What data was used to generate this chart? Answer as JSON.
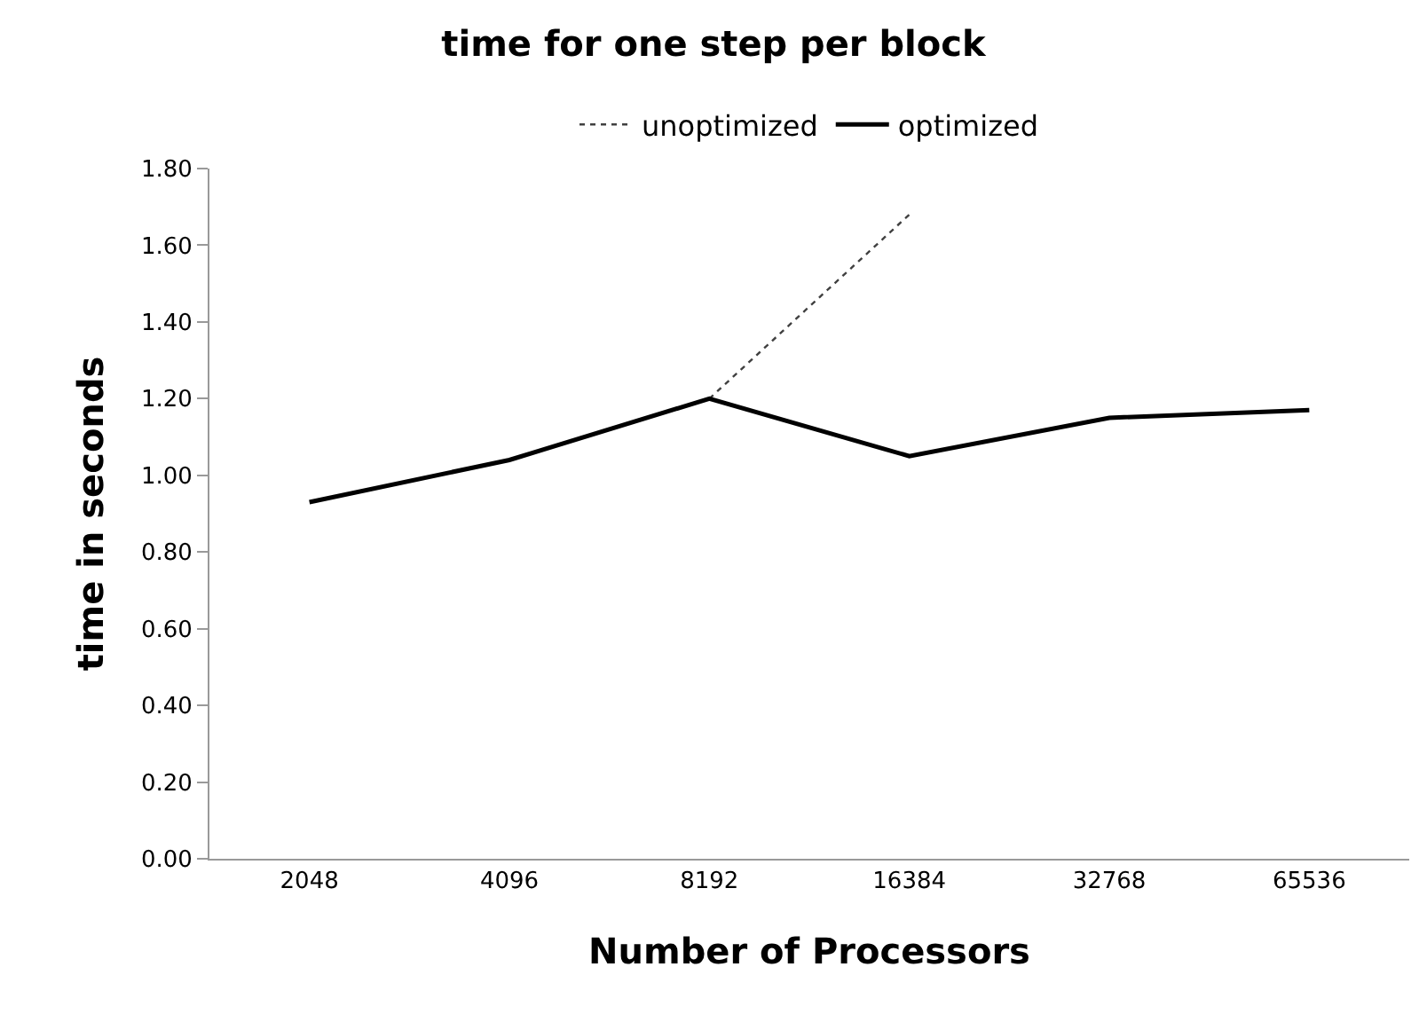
{
  "chart_data": {
    "type": "line",
    "title": "time for one step per block",
    "xlabel": "Number of Processors",
    "ylabel": "time in seconds",
    "categories": [
      "2048",
      "4096",
      "8192",
      "16384",
      "32768",
      "65536"
    ],
    "series": [
      {
        "name": "unoptimized",
        "color": "#404040",
        "line_style": "dotted",
        "values": [
          null,
          null,
          1.2,
          1.68,
          null,
          null
        ]
      },
      {
        "name": "optimized",
        "color": "#000000",
        "line_style": "solid",
        "values": [
          0.93,
          1.04,
          1.2,
          1.05,
          1.15,
          1.17
        ]
      }
    ],
    "ylim": [
      0,
      1.8
    ],
    "yticks": [
      {
        "value": 0,
        "label": "0.00"
      },
      {
        "value": 0.2,
        "label": "0.20"
      },
      {
        "value": 0.4,
        "label": "0.40"
      },
      {
        "value": 0.6,
        "label": "0.60"
      },
      {
        "value": 0.8,
        "label": "0.80"
      },
      {
        "value": 1,
        "label": "1.00"
      },
      {
        "value": 1.2,
        "label": "1.20"
      },
      {
        "value": 1.4,
        "label": "1.40"
      },
      {
        "value": 1.6,
        "label": "1.60"
      },
      {
        "value": 1.8,
        "label": "1.80"
      }
    ],
    "grid": false,
    "legend": "top",
    "marker": "none"
  }
}
